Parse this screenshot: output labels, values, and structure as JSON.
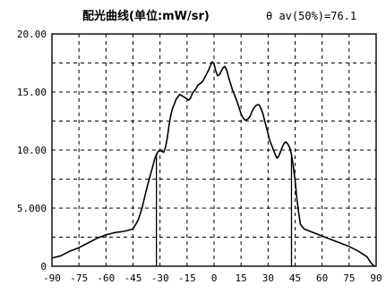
{
  "chart_data": {
    "type": "line",
    "title": "配光曲线(单位:mW/sr)",
    "annotation": "θ av(50%)=76.1",
    "xlabel": "",
    "ylabel": "",
    "xlim": [
      -90,
      90
    ],
    "ylim": [
      0,
      20
    ],
    "grid": true,
    "grid_style": "dashed",
    "x_ticks": [
      -90,
      -75,
      -60,
      -45,
      -30,
      -15,
      0,
      15,
      30,
      45,
      60,
      75,
      90
    ],
    "x_tick_labels": [
      "-90",
      "-75",
      "-60",
      "-45",
      "-30",
      "-15",
      "0",
      "15",
      "30",
      "45",
      "60",
      "75",
      "90"
    ],
    "y_ticks": [
      0,
      5,
      10,
      15,
      20
    ],
    "y_tick_labels": [
      "0",
      "5.000",
      "10.00",
      "15.00",
      "20.00"
    ],
    "line_color": "#000000",
    "series": [
      {
        "x": [
          -90,
          -85,
          -80,
          -75,
          -70,
          -65,
          -60,
          -55,
          -50,
          -45,
          -42,
          -40,
          -38,
          -36,
          -34,
          -33,
          -32,
          -31,
          -30,
          -29,
          -28,
          -27,
          -26,
          -25,
          -24,
          -23,
          -22,
          -21,
          -20,
          -19,
          -18,
          -17,
          -16,
          -15,
          -14,
          -13,
          -12,
          -11,
          -10,
          -9,
          -8,
          -7,
          -6,
          -5,
          -4,
          -3,
          -2,
          -1,
          0,
          1,
          2,
          3,
          4,
          5,
          6,
          7,
          8,
          9,
          10,
          11,
          12,
          13,
          14,
          15,
          16,
          17,
          18,
          19,
          20,
          21,
          22,
          23,
          24,
          25,
          26,
          27,
          28,
          29,
          30,
          31,
          32,
          33,
          34,
          35,
          36,
          37,
          38,
          39,
          40,
          41,
          42,
          43,
          44,
          45,
          46,
          47,
          48,
          50,
          55,
          60,
          65,
          70,
          75,
          80,
          85,
          87,
          89
        ],
        "y": [
          0.7,
          0.9,
          1.3,
          1.6,
          2.0,
          2.4,
          2.7,
          2.9,
          3.0,
          3.2,
          4.0,
          5.0,
          6.3,
          7.5,
          8.6,
          9.2,
          9.6,
          9.9,
          10.0,
          9.9,
          9.8,
          10.2,
          11.0,
          12.1,
          13.0,
          13.6,
          14.0,
          14.4,
          14.6,
          14.8,
          14.7,
          14.6,
          14.5,
          14.4,
          14.3,
          14.5,
          14.9,
          15.1,
          15.3,
          15.6,
          15.7,
          15.8,
          16.0,
          16.3,
          16.6,
          16.9,
          17.3,
          17.6,
          17.4,
          16.8,
          16.4,
          16.5,
          16.8,
          17.1,
          17.2,
          16.9,
          16.3,
          15.8,
          15.3,
          14.9,
          14.5,
          14.1,
          13.6,
          13.1,
          12.8,
          12.6,
          12.6,
          12.7,
          12.9,
          13.3,
          13.6,
          13.8,
          13.9,
          13.9,
          13.6,
          13.2,
          12.6,
          12.0,
          11.4,
          10.8,
          10.4,
          10.0,
          9.6,
          9.3,
          9.5,
          9.9,
          10.3,
          10.6,
          10.7,
          10.5,
          10.2,
          9.6,
          8.6,
          7.4,
          5.8,
          4.6,
          3.6,
          3.2,
          2.9,
          2.6,
          2.3,
          2.0,
          1.7,
          1.3,
          0.8,
          0.3,
          0.0
        ]
      }
    ],
    "vertical_markers": [
      -32,
      43
    ]
  }
}
